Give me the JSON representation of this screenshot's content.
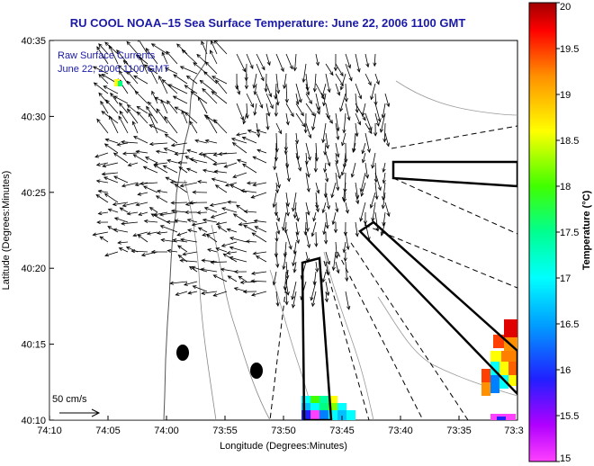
{
  "title": "RU COOL  NOAA–15  Sea Surface Temperature:  June 22, 2006 1100 GMT",
  "map": {
    "xlabel": "Longitude (Degrees:Minutes)",
    "ylabel": "Latitude (Degrees:Minutes)",
    "x_ticks": [
      "74:10",
      "74:05",
      "74:00",
      "73:55",
      "73:50",
      "73:45",
      "73:40",
      "73:35",
      "73:3"
    ],
    "y_ticks": [
      "40:35",
      "40:30",
      "40:25",
      "40:20",
      "40:15",
      "40:10"
    ],
    "legend_line1": "Raw Surface Currents",
    "legend_line2": "June 22, 2006 1100 GMT",
    "scale_label": "50 cm/s"
  },
  "colorbar": {
    "label": "Temperature (°C)",
    "ticks": [
      "20",
      "19.5",
      "19",
      "18.5",
      "18",
      "17.5",
      "17",
      "16.5",
      "16",
      "15.5",
      "15"
    ],
    "min": 15,
    "max": 20,
    "colors": [
      "#ff00ff",
      "#8000ff",
      "#0000ff",
      "#0080ff",
      "#00ffff",
      "#00ff80",
      "#00ff00",
      "#ffff00",
      "#ff8000",
      "#ff0000",
      "#a00000"
    ]
  }
}
